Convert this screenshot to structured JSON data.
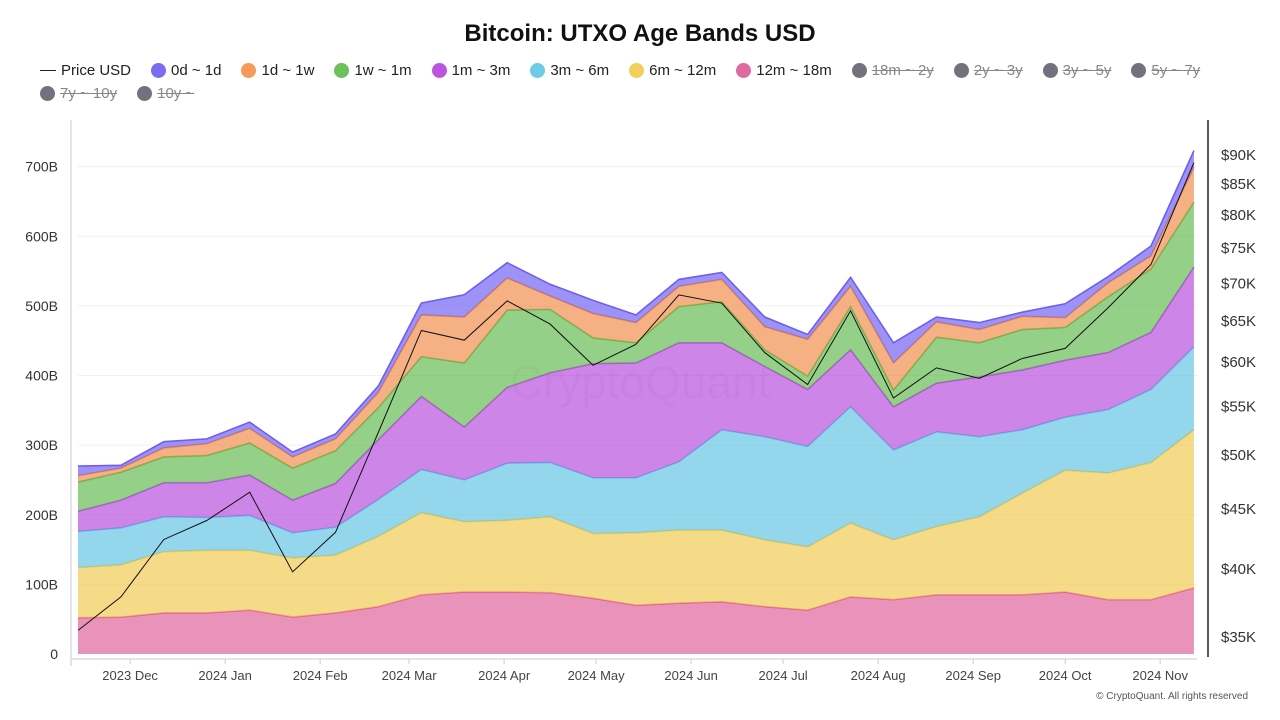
{
  "chart_data": {
    "type": "area",
    "stacked": true,
    "title": "Bitcoin: UTXO Age Bands USD",
    "x": [
      "2023-11-14",
      "2023-11-28",
      "2023-12-12",
      "2023-12-26",
      "2024-01-09",
      "2024-01-23",
      "2024-02-06",
      "2024-02-20",
      "2024-03-05",
      "2024-03-19",
      "2024-04-02",
      "2024-04-16",
      "2024-04-30",
      "2024-05-14",
      "2024-05-28",
      "2024-06-11",
      "2024-06-25",
      "2024-07-09",
      "2024-07-23",
      "2024-08-06",
      "2024-08-20",
      "2024-09-03",
      "2024-09-17",
      "2024-10-01",
      "2024-10-15",
      "2024-10-29",
      "2024-11-12"
    ],
    "x_ticks": [
      {
        "date": "2023-12-01",
        "label": "2023 Dec"
      },
      {
        "date": "2024-01-01",
        "label": "2024 Jan"
      },
      {
        "date": "2024-02-01",
        "label": "2024 Feb"
      },
      {
        "date": "2024-03-01",
        "label": "2024 Mar"
      },
      {
        "date": "2024-04-01",
        "label": "2024 Apr"
      },
      {
        "date": "2024-05-01",
        "label": "2024 May"
      },
      {
        "date": "2024-06-01",
        "label": "2024 Jun"
      },
      {
        "date": "2024-07-01",
        "label": "2024 Jul"
      },
      {
        "date": "2024-08-01",
        "label": "2024 Aug"
      },
      {
        "date": "2024-09-01",
        "label": "2024 Sep"
      },
      {
        "date": "2024-10-01",
        "label": "2024 Oct"
      },
      {
        "date": "2024-11-01",
        "label": "2024 Nov"
      }
    ],
    "y_left": {
      "unit": "B",
      "ticks": [
        0,
        100,
        200,
        300,
        400,
        500,
        600,
        700
      ],
      "tick_labels": [
        "0",
        "100B",
        "200B",
        "300B",
        "400B",
        "500B",
        "600B",
        "700B"
      ],
      "range": [
        0,
        767
      ]
    },
    "y_right": {
      "scale": "log",
      "ticks": [
        35,
        40,
        45,
        50,
        55,
        60,
        65,
        70,
        75,
        80,
        85,
        90
      ],
      "tick_labels": [
        "$35K",
        "$40K",
        "$45K",
        "$50K",
        "$55K",
        "$60K",
        "$65K",
        "$70K",
        "$75K",
        "$80K",
        "$85K",
        "$90K"
      ],
      "range": [
        33.8,
        96.2
      ]
    },
    "grid": true,
    "legend_placement": "top",
    "series": [
      {
        "name": "12m ~ 18m",
        "color": "#e0609a",
        "values": [
          52,
          53,
          59,
          59,
          63,
          53,
          59,
          68,
          85,
          89,
          89,
          88,
          80,
          70,
          73,
          75,
          68,
          63,
          82,
          78,
          85,
          85,
          85,
          89,
          78,
          78,
          95
        ]
      },
      {
        "name": "6m ~ 12m",
        "color": "#f0c94e",
        "values": [
          72,
          75,
          88,
          90,
          86,
          85,
          83,
          101,
          118,
          101,
          103,
          109,
          93,
          104,
          105,
          103,
          96,
          91,
          106,
          86,
          98,
          112,
          146,
          175,
          182,
          197,
          227
        ]
      },
      {
        "name": "3m ~ 6m",
        "color": "#62c4e4",
        "values": [
          52,
          53,
          50,
          47,
          50,
          36,
          40,
          53,
          62,
          60,
          82,
          78,
          80,
          79,
          98,
          144,
          148,
          144,
          167,
          129,
          136,
          115,
          91,
          76,
          91,
          105,
          119
        ]
      },
      {
        "name": "1m ~ 3m",
        "color": "#b64ddc",
        "values": [
          29,
          40,
          49,
          50,
          58,
          47,
          63,
          86,
          105,
          76,
          109,
          129,
          164,
          165,
          171,
          125,
          101,
          82,
          82,
          62,
          70,
          86,
          86,
          82,
          82,
          82,
          115
        ]
      },
      {
        "name": "1w ~ 1m",
        "color": "#62b94f",
        "values": [
          42,
          40,
          37,
          39,
          46,
          46,
          47,
          46,
          57,
          92,
          111,
          91,
          37,
          29,
          52,
          59,
          24,
          19,
          62,
          24,
          66,
          49,
          58,
          47,
          80,
          91,
          93
        ]
      },
      {
        "name": "1d ~ 1w",
        "color": "#f08a48",
        "values": [
          9,
          6,
          13,
          17,
          21,
          16,
          17,
          22,
          60,
          66,
          46,
          19,
          35,
          29,
          29,
          32,
          33,
          53,
          29,
          39,
          22,
          19,
          19,
          14,
          20,
          19,
          50
        ]
      },
      {
        "name": "0d ~ 1d",
        "color": "#6e5ff0",
        "values": [
          14,
          4,
          9,
          7,
          9,
          7,
          7,
          9,
          17,
          32,
          22,
          17,
          19,
          11,
          10,
          10,
          14,
          7,
          13,
          29,
          7,
          10,
          6,
          20,
          9,
          14,
          24
        ]
      }
    ],
    "price": {
      "name": "Price USD",
      "unit": "K USD",
      "color": "#111111",
      "values": [
        35.4,
        37.8,
        42.3,
        43.9,
        46.4,
        39.7,
        42.9,
        52.2,
        63.7,
        62.5,
        67.5,
        64.5,
        59.5,
        62,
        68.3,
        67.2,
        61,
        57.3,
        66.2,
        55.8,
        59.2,
        58,
        60.3,
        61.5,
        66.6,
        72.5,
        88.5
      ]
    }
  },
  "legend": [
    {
      "label": "Price USD",
      "type": "line",
      "hidden": false,
      "color": "#222222"
    },
    {
      "label": "0d ~ 1d",
      "hidden": false,
      "color": "#7b6cf2"
    },
    {
      "label": "1d ~ 1w",
      "hidden": false,
      "color": "#f59a5a"
    },
    {
      "label": "1w ~ 1m",
      "hidden": false,
      "color": "#6cc15a"
    },
    {
      "label": "1m ~ 3m",
      "hidden": false,
      "color": "#bb55e0"
    },
    {
      "label": "3m ~ 6m",
      "hidden": false,
      "color": "#6ccbe6"
    },
    {
      "label": "6m ~ 12m",
      "hidden": false,
      "color": "#f3ce5a"
    },
    {
      "label": "12m ~ 18m",
      "hidden": false,
      "color": "#e06a9e"
    },
    {
      "label": "18m ~ 2y",
      "hidden": true,
      "color": "#74717e"
    },
    {
      "label": "2y ~ 3y",
      "hidden": true,
      "color": "#74717e"
    },
    {
      "label": "3y ~ 5y",
      "hidden": true,
      "color": "#74717e"
    },
    {
      "label": "5y ~ 7y",
      "hidden": true,
      "color": "#74717e"
    },
    {
      "label": "7y ~ 10y",
      "hidden": true,
      "color": "#74717e"
    },
    {
      "label": "10y ~",
      "hidden": true,
      "color": "#74717e"
    }
  ],
  "watermark": "CryptoQuant",
  "footer": "© CryptoQuant. All rights reserved"
}
